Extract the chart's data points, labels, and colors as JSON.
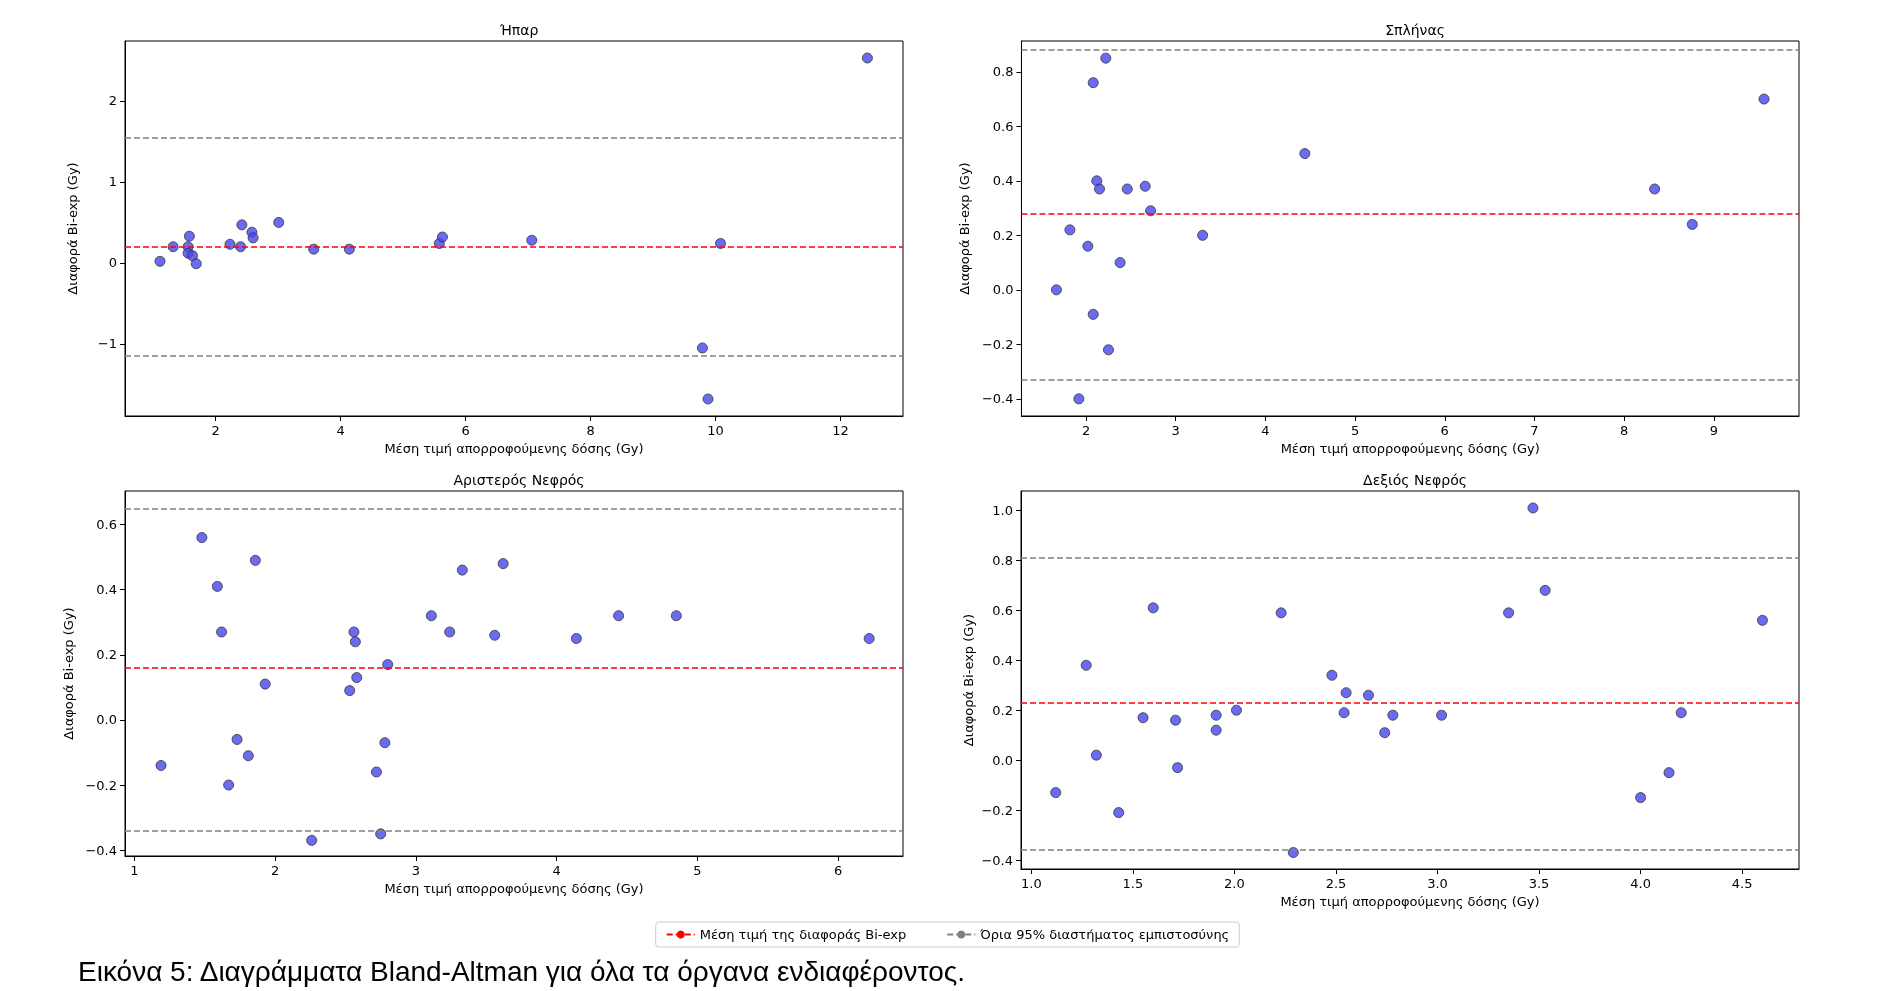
{
  "chart_data": [
    {
      "type": "scatter",
      "title": "Ήπαρ",
      "xlabel": "Μέση τιμή απορροφούμενης δόσης (Gy)",
      "ylabel": "Διαφορά Bi-exp (Gy)",
      "marker": "circle",
      "color": "#4646ee",
      "grid": false,
      "legend": false,
      "x": [
        1.11,
        1.32,
        1.56,
        1.58,
        1.56,
        1.63,
        1.69,
        2.23,
        2.42,
        2.4,
        2.58,
        2.6,
        3.01,
        3.57,
        4.14,
        5.58,
        5.63,
        7.06,
        10.08,
        9.79,
        9.88,
        12.43
      ],
      "values": [
        0.02,
        0.2,
        0.2,
        0.33,
        0.12,
        0.09,
        -0.01,
        0.23,
        0.47,
        0.2,
        0.38,
        0.31,
        0.5,
        0.17,
        0.17,
        0.24,
        0.32,
        0.28,
        0.24,
        -1.05,
        -1.68,
        2.53
      ],
      "xlim": [
        0.55,
        13.0
      ],
      "xticks": [
        2,
        4,
        6,
        8,
        10,
        12
      ],
      "ylim": [
        -1.89,
        2.74
      ],
      "yticks": [
        {
          "value": -1,
          "label": "−1"
        },
        0,
        1,
        2
      ],
      "ref_lines": [
        {
          "axis": "y",
          "value": 0.2,
          "color": "#ff0000",
          "line_style": "dashed"
        },
        {
          "axis": "y",
          "value": 1.547,
          "color": "#808080",
          "line_style": "dashed"
        },
        {
          "axis": "y",
          "value": -1.147,
          "color": "#808080",
          "line_style": "dashed"
        }
      ]
    },
    {
      "type": "scatter",
      "title": "Σπλήνας",
      "xlabel": "Μέση τιμή απορροφούμενης δόσης (Gy)",
      "ylabel": "Διαφορά Bi-exp (Gy)",
      "marker": "circle",
      "color": "#4646ee",
      "grid": false,
      "legend": false,
      "x": [
        1.67,
        1.82,
        1.92,
        2.02,
        2.08,
        2.08,
        2.12,
        2.15,
        2.22,
        2.25,
        2.38,
        2.46,
        2.66,
        2.72,
        3.3,
        4.44,
        8.34,
        8.76,
        9.56
      ],
      "values": [
        0.0,
        0.22,
        -0.4,
        0.16,
        0.76,
        -0.09,
        0.4,
        0.37,
        0.85,
        -0.22,
        0.1,
        0.37,
        0.38,
        0.29,
        0.2,
        0.5,
        0.37,
        0.24,
        0.7
      ],
      "xlim": [
        1.28,
        9.95
      ],
      "xticks": [
        2,
        3,
        4,
        5,
        6,
        7,
        8,
        9
      ],
      "ylim": [
        -0.463,
        0.913
      ],
      "yticks": [
        {
          "value": -0.4,
          "label": "−0.4"
        },
        {
          "value": -0.2,
          "label": "−0.2"
        },
        {
          "value": 0,
          "label": "0.0"
        },
        0.2,
        0.4,
        0.6,
        0.8
      ],
      "ref_lines": [
        {
          "axis": "y",
          "value": 0.275,
          "color": "#ff0000",
          "line_style": "dashed"
        },
        {
          "axis": "y",
          "value": 0.883,
          "color": "#808080",
          "line_style": "dashed"
        },
        {
          "axis": "y",
          "value": -0.333,
          "color": "#808080",
          "line_style": "dashed"
        }
      ]
    },
    {
      "type": "scatter",
      "title": "Αριστερός Νεφρός",
      "xlabel": "Μέση τιμή απορροφούμενης δόσης (Gy)",
      "ylabel": "Διαφορά Bi-exp (Gy)",
      "marker": "circle",
      "color": "#4646ee",
      "grid": false,
      "legend": false,
      "x": [
        1.19,
        1.48,
        1.59,
        1.62,
        1.67,
        1.73,
        1.81,
        1.86,
        1.93,
        2.26,
        2.53,
        2.56,
        2.57,
        2.58,
        2.72,
        2.75,
        2.78,
        2.8,
        3.11,
        3.24,
        3.33,
        3.56,
        3.62,
        4.14,
        4.44,
        4.85,
        6.22
      ],
      "values": [
        -0.14,
        0.56,
        0.41,
        0.27,
        -0.2,
        -0.06,
        -0.11,
        0.49,
        0.11,
        -0.37,
        0.09,
        0.27,
        0.24,
        0.13,
        -0.16,
        -0.35,
        -0.07,
        0.17,
        0.32,
        0.27,
        0.46,
        0.26,
        0.48,
        0.25,
        0.32,
        0.32,
        0.25
      ],
      "xlim": [
        0.934,
        6.46
      ],
      "xticks": [
        1,
        2,
        3,
        4,
        5,
        6
      ],
      "ylim": [
        -0.418,
        0.703
      ],
      "yticks": [
        {
          "value": -0.4,
          "label": "−0.4"
        },
        {
          "value": -0.2,
          "label": "−0.2"
        },
        {
          "value": 0,
          "label": "0.0"
        },
        0.2,
        0.4,
        0.6
      ],
      "ref_lines": [
        {
          "axis": "y",
          "value": 0.158,
          "color": "#ff0000",
          "line_style": "dashed"
        },
        {
          "axis": "y",
          "value": 0.652,
          "color": "#808080",
          "line_style": "dashed"
        },
        {
          "axis": "y",
          "value": -0.337,
          "color": "#808080",
          "line_style": "dashed"
        }
      ]
    },
    {
      "type": "scatter",
      "title": "Δεξιός Νεφρός",
      "xlabel": "Μέση τιμή απορροφούμενης δόσης (Gy)",
      "ylabel": "Διαφορά Bi-exp (Gy)",
      "marker": "circle",
      "color": "#4646ee",
      "grid": false,
      "legend": "bottom",
      "x": [
        1.12,
        1.27,
        1.32,
        1.43,
        1.55,
        1.6,
        1.71,
        1.72,
        1.91,
        1.91,
        2.01,
        2.23,
        2.29,
        2.48,
        2.54,
        2.55,
        2.66,
        2.74,
        2.78,
        3.02,
        3.35,
        3.47,
        3.53,
        4.0,
        4.14,
        4.2,
        4.6
      ],
      "values": [
        -0.13,
        0.38,
        0.02,
        -0.21,
        0.17,
        0.61,
        0.16,
        -0.03,
        0.18,
        0.12,
        0.2,
        0.59,
        -0.37,
        0.34,
        0.19,
        0.27,
        0.26,
        0.11,
        0.18,
        0.18,
        0.59,
        1.01,
        0.68,
        -0.15,
        -0.05,
        0.19,
        0.56
      ],
      "xlim": [
        0.949,
        4.78
      ],
      "xticks": [
        {
          "value": 1,
          "label": "1.0"
        },
        1.5,
        {
          "value": 2,
          "label": "2.0"
        },
        2.5,
        {
          "value": 3,
          "label": "3.0"
        },
        3.5,
        {
          "value": 4,
          "label": "4.0"
        },
        4.5
      ],
      "ylim": [
        -0.436,
        1.078
      ],
      "yticks": [
        {
          "value": -0.4,
          "label": "−0.4"
        },
        {
          "value": -0.2,
          "label": "−0.2"
        },
        {
          "value": 0,
          "label": "0.0"
        },
        0.2,
        0.4,
        0.6,
        0.8,
        {
          "value": 1,
          "label": "1.0"
        }
      ],
      "ref_lines": [
        {
          "axis": "y",
          "value": 0.229,
          "color": "#ff0000",
          "line_style": "dashed",
          "label": "Μέση τιμή της διαφοράς Bi-exp"
        },
        {
          "axis": "y",
          "value": 0.81,
          "color": "#808080",
          "line_style": "dashed",
          "label": "Όρια 95% διαστήματος εμπιστοσύνης"
        },
        {
          "axis": "y",
          "value": -0.359,
          "color": "#808080",
          "line_style": "dashed"
        }
      ],
      "annotations": [
        "Εικόνα 5: Διαγράμματα Bland-Altman για όλα τα όργανα ενδιαφέροντος."
      ]
    }
  ]
}
